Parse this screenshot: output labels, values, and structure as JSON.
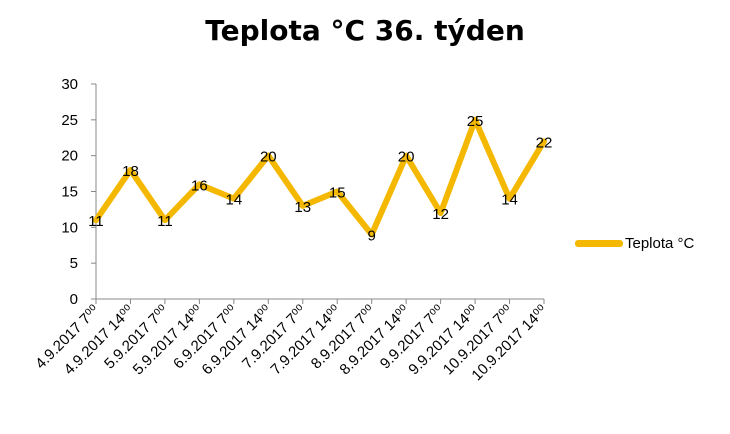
{
  "chart_data": {
    "type": "line",
    "title": "Teplota °C 36. týden",
    "xlabel": "",
    "ylabel": "",
    "ylim": [
      0,
      30
    ],
    "yticks": [
      "0",
      "5",
      "10",
      "15",
      "20",
      "25",
      "30"
    ],
    "categories": [
      "4.9.2017 7⁰⁰",
      "4.9.2017 14⁰⁰",
      "5.9.2017 7⁰⁰",
      "5.9.2017 14⁰⁰",
      "6.9.2017 7⁰⁰",
      "6.9.2017 14⁰⁰",
      "7.9.2017 7⁰⁰",
      "7.9.2017 14⁰⁰",
      "8.9.2017 7⁰⁰",
      "8.9.2017 14⁰⁰",
      "9.9.2017 7⁰⁰",
      "9.9.2017 14⁰⁰",
      "10.9.2017 7⁰⁰",
      "10.9.2017 14⁰⁰"
    ],
    "series": [
      {
        "name": "Teplota °C",
        "values": [
          11,
          18,
          11,
          16,
          14,
          20,
          13,
          15,
          9,
          20,
          12,
          25,
          14,
          22
        ],
        "color": "#f5b800"
      }
    ],
    "data_labels": [
      "11",
      "18",
      "11",
      "16",
      "14",
      "20",
      "13",
      "15",
      "9",
      "20",
      "12",
      "25",
      "14",
      "22"
    ],
    "grid": false,
    "legend_position": "right"
  }
}
